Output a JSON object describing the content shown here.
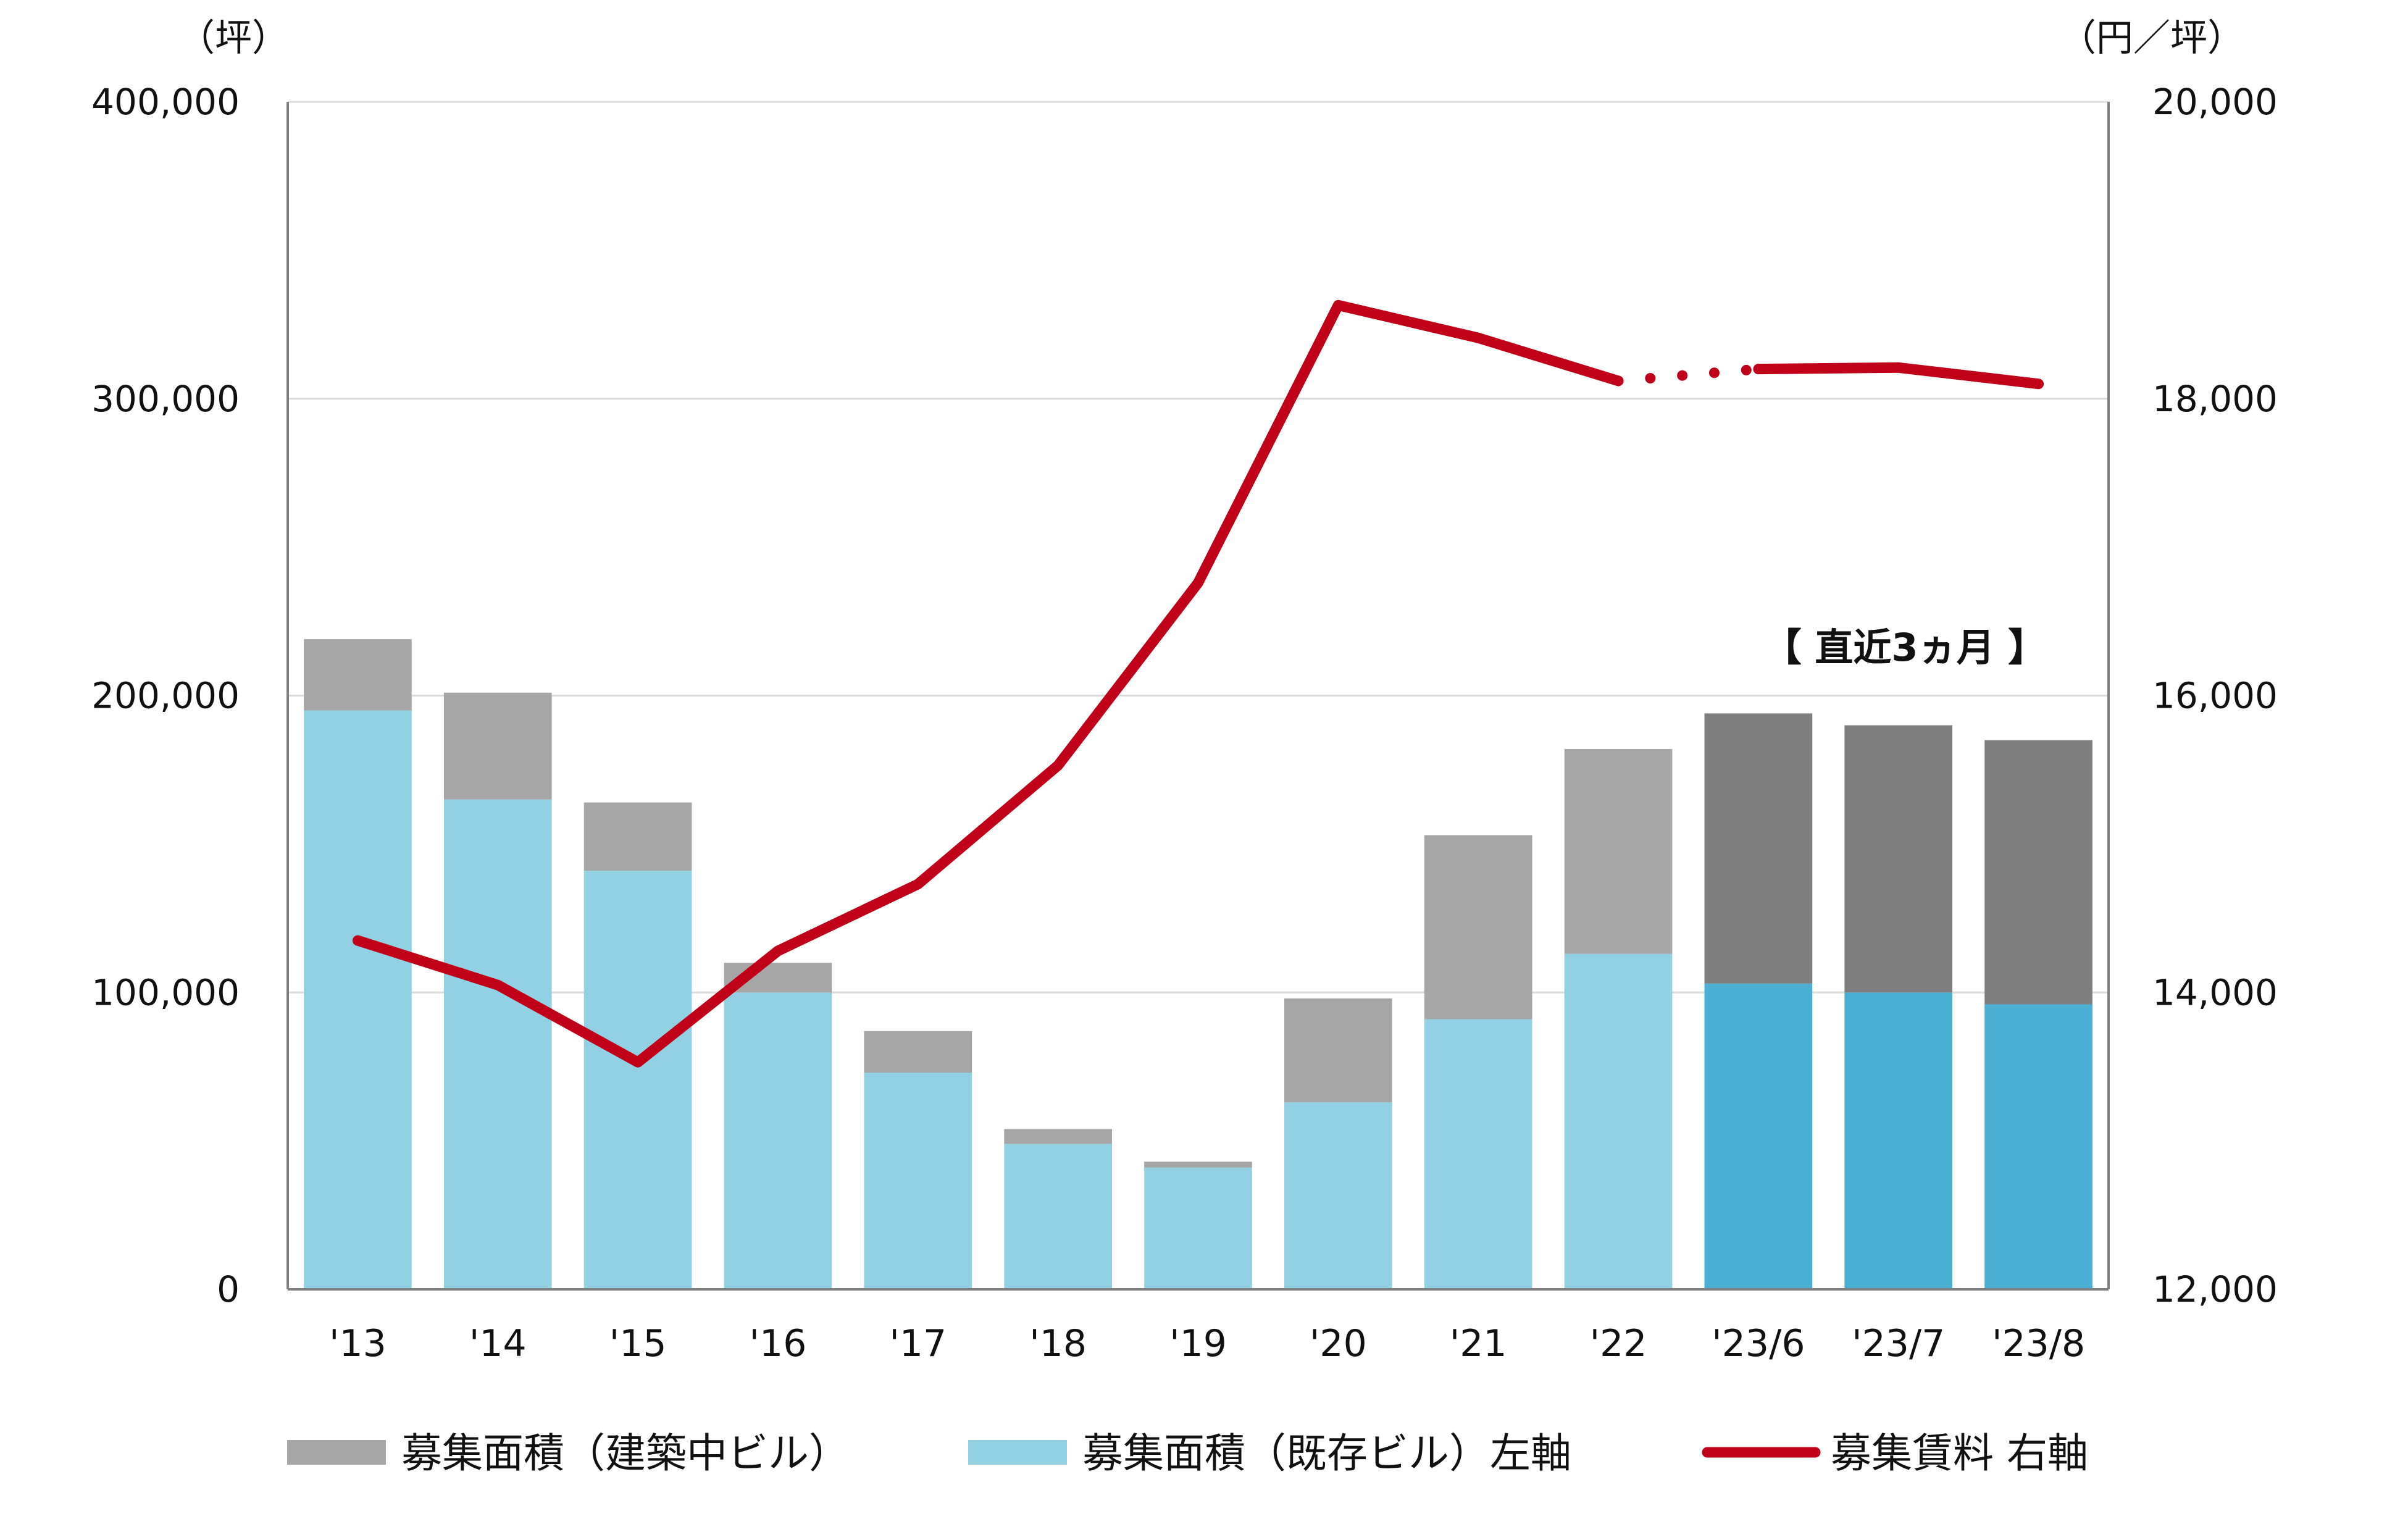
{
  "chart_data": {
    "type": "bar",
    "left_unit_label": "（坪）",
    "right_unit_label": "（円／坪）",
    "left_axis": {
      "ylim": [
        0,
        400000
      ],
      "ticks": [
        0,
        100000,
        200000,
        300000,
        400000
      ],
      "tick_labels": [
        "0",
        "100,000",
        "200,000",
        "300,000",
        "400,000"
      ]
    },
    "right_axis": {
      "ylim": [
        12000,
        20000
      ],
      "ticks": [
        12000,
        14000,
        16000,
        18000,
        20000
      ],
      "tick_labels": [
        "12,000",
        "14,000",
        "16,000",
        "18,000",
        "20,000"
      ]
    },
    "grid": true,
    "categories": [
      "'13",
      "'14",
      "'15",
      "'16",
      "'17",
      "'18",
      "'19",
      "'20",
      "'21",
      "'22",
      "'23/6",
      "'23/7",
      "'23/8"
    ],
    "series": [
      {
        "name": "募集面積（既存ビル）左軸",
        "type": "bar",
        "axis": "left",
        "color": "#92D0E3",
        "highlight_color": "#4AAFD3",
        "values": [
          195000,
          165000,
          141000,
          100000,
          73000,
          49000,
          41000,
          63000,
          91000,
          113000,
          103000,
          100000,
          96000
        ]
      },
      {
        "name": "募集面積（建築中ビル）",
        "type": "bar",
        "axis": "left",
        "stacked": true,
        "color": "#A6A6A6",
        "highlight_color": "#7F7F7F",
        "values": [
          24000,
          36000,
          23000,
          10000,
          14000,
          5000,
          2000,
          35000,
          62000,
          69000,
          91000,
          90000,
          89000
        ]
      },
      {
        "name": "募集賃料 右軸",
        "type": "line",
        "axis": "right",
        "color": "#C00018",
        "values": [
          14350,
          14050,
          13530,
          14280,
          14730,
          15530,
          16760,
          18630,
          18410,
          18120,
          18200,
          18210,
          18100
        ]
      }
    ],
    "highlight_categories": [
      "'23/6",
      "'23/7",
      "'23/8"
    ],
    "dotted_segment": [
      "'22",
      "'23/6"
    ],
    "annotation": "【 直近3ヵ月 】",
    "legend": {
      "placement": "bottom",
      "items": [
        {
          "label": "募集面積（建築中ビル）",
          "color": "#A6A6A6",
          "kind": "box"
        },
        {
          "label": "募集面積（既存ビル）左軸",
          "color": "#92D0E3",
          "kind": "box"
        },
        {
          "label": "募集賃料 右軸",
          "color": "#C00018",
          "kind": "line"
        }
      ]
    }
  }
}
